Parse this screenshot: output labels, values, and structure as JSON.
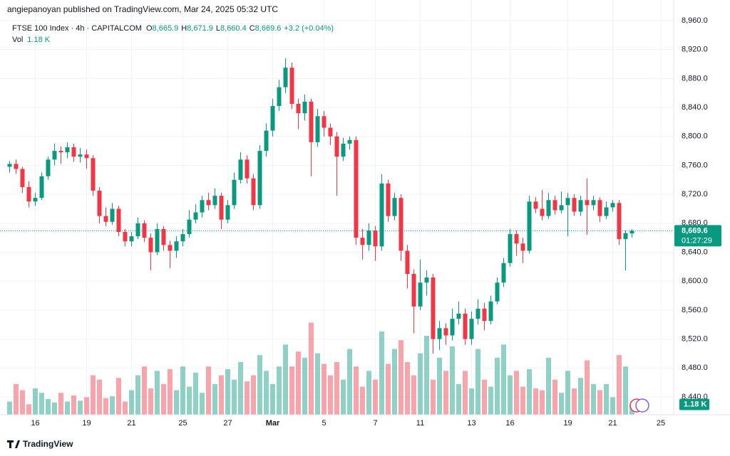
{
  "header": {
    "published": "angiepanoyan published on TradingView.com, Mar 24, 2025 05:32 UTC"
  },
  "chart_data": {
    "type": "candlestick",
    "title": "FTSE 100 Index · 4h · CAPITALCOM",
    "ohlc_labels": [
      {
        "key": "O",
        "value": "8,665.9"
      },
      {
        "key": "H",
        "value": "8,671.9"
      },
      {
        "key": "L",
        "value": "8,660.4"
      },
      {
        "key": "C",
        "value": "8,669.6"
      }
    ],
    "change": "+3.2 (+0.04%)",
    "up_color": "#089981",
    "down_color": "#f23645",
    "open": [
      8758,
      8762,
      8755,
      8730,
      8710,
      8715,
      8745,
      8768,
      8780,
      8778,
      8785,
      8772,
      8775,
      8770,
      8725,
      8690,
      8682,
      8700,
      8668,
      8655,
      8662,
      8680,
      8660,
      8640,
      8672,
      8650,
      8642,
      8655,
      8665,
      8685,
      8695,
      8712,
      8705,
      8718,
      8685,
      8705,
      8740,
      8768,
      8742,
      8705,
      8780,
      8808,
      8842,
      8868,
      8895,
      8845,
      8832,
      8848,
      8792,
      8828,
      8812,
      8800,
      8772,
      8790,
      8795,
      8660,
      8650,
      8670,
      8648,
      8735,
      8690,
      8715,
      8642,
      8610,
      8565,
      8598,
      8605,
      8520,
      8535,
      8525,
      8548,
      8555,
      8520,
      8548,
      8562,
      8545,
      8572,
      8598,
      8625,
      8665,
      8652,
      8642,
      8710,
      8700,
      8690,
      8712,
      8698,
      8705,
      8715,
      8696,
      8712,
      8705,
      8712,
      8690,
      8702,
      8708,
      8658,
      8665.9
    ],
    "high": [
      8766,
      8768,
      8758,
      8738,
      8722,
      8750,
      8772,
      8790,
      8786,
      8792,
      8790,
      8784,
      8782,
      8774,
      8730,
      8702,
      8708,
      8704,
      8672,
      8668,
      8688,
      8684,
      8666,
      8680,
      8676,
      8656,
      8662,
      8672,
      8698,
      8706,
      8718,
      8722,
      8728,
      8722,
      8712,
      8750,
      8778,
      8774,
      8748,
      8788,
      8818,
      8852,
      8878,
      8908,
      8902,
      8852,
      8858,
      8852,
      8838,
      8835,
      8818,
      8806,
      8798,
      8800,
      8800,
      8672,
      8680,
      8676,
      8748,
      8740,
      8722,
      8720,
      8650,
      8616,
      8630,
      8615,
      8610,
      8545,
      8542,
      8562,
      8572,
      8562,
      8558,
      8575,
      8570,
      8580,
      8605,
      8632,
      8672,
      8670,
      8660,
      8718,
      8716,
      8726,
      8722,
      8718,
      8724,
      8722,
      8720,
      8718,
      8742,
      8718,
      8716,
      8710,
      8712,
      8712,
      8670,
      8671.9
    ],
    "low": [
      8750,
      8748,
      8722,
      8702,
      8704,
      8712,
      8740,
      8760,
      8762,
      8770,
      8765,
      8764,
      8755,
      8718,
      8680,
      8676,
      8678,
      8662,
      8648,
      8648,
      8658,
      8654,
      8615,
      8636,
      8642,
      8618,
      8632,
      8648,
      8660,
      8680,
      8688,
      8698,
      8700,
      8672,
      8680,
      8700,
      8735,
      8735,
      8698,
      8700,
      8772,
      8800,
      8835,
      8860,
      8838,
      8810,
      8822,
      8745,
      8786,
      8800,
      8788,
      8718,
      8766,
      8782,
      8650,
      8630,
      8642,
      8628,
      8642,
      8682,
      8684,
      8628,
      8590,
      8528,
      8560,
      8580,
      8500,
      8505,
      8512,
      8518,
      8540,
      8512,
      8512,
      8540,
      8532,
      8540,
      8568,
      8592,
      8620,
      8635,
      8625,
      8638,
      8694,
      8684,
      8686,
      8692,
      8694,
      8662,
      8690,
      8690,
      8664,
      8698,
      8682,
      8686,
      8696,
      8650,
      8615,
      8660.4
    ],
    "close": [
      8762,
      8755,
      8730,
      8710,
      8715,
      8745,
      8768,
      8780,
      8778,
      8785,
      8772,
      8775,
      8770,
      8725,
      8690,
      8682,
      8700,
      8668,
      8655,
      8662,
      8680,
      8660,
      8640,
      8672,
      8650,
      8642,
      8655,
      8665,
      8685,
      8695,
      8712,
      8705,
      8718,
      8685,
      8705,
      8740,
      8768,
      8742,
      8705,
      8780,
      8808,
      8842,
      8868,
      8895,
      8845,
      8832,
      8848,
      8792,
      8828,
      8812,
      8800,
      8772,
      8790,
      8795,
      8660,
      8650,
      8670,
      8648,
      8735,
      8690,
      8715,
      8642,
      8610,
      8565,
      8598,
      8605,
      8520,
      8535,
      8525,
      8548,
      8555,
      8520,
      8548,
      8562,
      8545,
      8572,
      8598,
      8625,
      8665,
      8652,
      8642,
      8710,
      8700,
      8690,
      8712,
      8698,
      8705,
      8715,
      8696,
      8712,
      8705,
      8712,
      8690,
      8702,
      8708,
      8658,
      8666.4,
      8669.6
    ],
    "volume": {
      "name": "Vol",
      "label": "1.18 K",
      "ylim": [
        0,
        12
      ],
      "values": [
        1.5,
        3.5,
        2.8,
        1.2,
        3.0,
        2.5,
        1.8,
        1.4,
        2.5,
        1.5,
        2.2,
        1.6,
        2.0,
        4.5,
        4.0,
        1.9,
        2.1,
        4.2,
        1.5,
        2.8,
        4.5,
        5.5,
        3.0,
        5.0,
        3.5,
        5.2,
        2.8,
        5.5,
        3.2,
        4.8,
        2.5,
        5.5,
        3.5,
        4.5,
        5.2,
        4.0,
        6.0,
        3.8,
        4.5,
        6.8,
        5.0,
        3.5,
        5.5,
        8.0,
        5.5,
        7.2,
        6.5,
        10.5,
        7.0,
        5.8,
        4.5,
        6.0,
        4.0,
        7.5,
        5.5,
        3.2,
        5.0,
        4.0,
        9.5,
        5.8,
        7.5,
        8.5,
        6.0,
        4.5,
        7.0,
        9.0,
        4.0,
        6.5,
        5.0,
        7.8,
        3.5,
        5.0,
        3.0,
        7.5,
        4.0,
        3.2,
        6.5,
        8.0,
        4.5,
        5.0,
        3.2,
        5.2,
        3.0,
        2.8,
        6.5,
        4.0,
        2.5,
        5.0,
        3.0,
        4.2,
        6.2,
        3.5,
        2.8,
        3.5,
        2.0,
        6.8,
        5.5,
        1.18
      ]
    },
    "last_price_label": "8,669.6",
    "countdown": "01:27:29",
    "ylim": [
      8415.4,
      8988.5
    ],
    "yticks": [
      {
        "value": 8440,
        "label": "8,440.0"
      },
      {
        "value": 8480,
        "label": "8,480.0"
      },
      {
        "value": 8520,
        "label": "8,520.0"
      },
      {
        "value": 8560,
        "label": "8,560.0"
      },
      {
        "value": 8600,
        "label": "8,600.0"
      },
      {
        "value": 8640,
        "label": "8,640.0"
      },
      {
        "value": 8680,
        "label": "8,680.0"
      },
      {
        "value": 8720,
        "label": "8,720.0"
      },
      {
        "value": 8760,
        "label": "8,760.0"
      },
      {
        "value": 8800,
        "label": "8,800.0"
      },
      {
        "value": 8840,
        "label": "8,840.0"
      },
      {
        "value": 8880,
        "label": "8,880.0"
      },
      {
        "value": 8920,
        "label": "8,920.0"
      },
      {
        "value": 8960,
        "label": "8,960.0"
      }
    ],
    "xlim": [
      -1.5,
      103.5
    ],
    "xticks": [
      {
        "value": 4,
        "label": "16"
      },
      {
        "value": 12,
        "label": "19"
      },
      {
        "value": 19,
        "label": "21"
      },
      {
        "value": 27,
        "label": "25"
      },
      {
        "value": 34,
        "label": "27"
      },
      {
        "value": 41,
        "label": "Mar"
      },
      {
        "value": 49,
        "label": "5"
      },
      {
        "value": 57,
        "label": "7"
      },
      {
        "value": 64,
        "label": "11"
      },
      {
        "value": 72,
        "label": "13"
      },
      {
        "value": 78,
        "label": "16"
      },
      {
        "value": 87,
        "label": "19"
      },
      {
        "value": 94,
        "label": "21"
      },
      {
        "value": 101.5,
        "label": "25"
      }
    ],
    "grid": true
  },
  "footer": {
    "brand": "TradingView"
  }
}
